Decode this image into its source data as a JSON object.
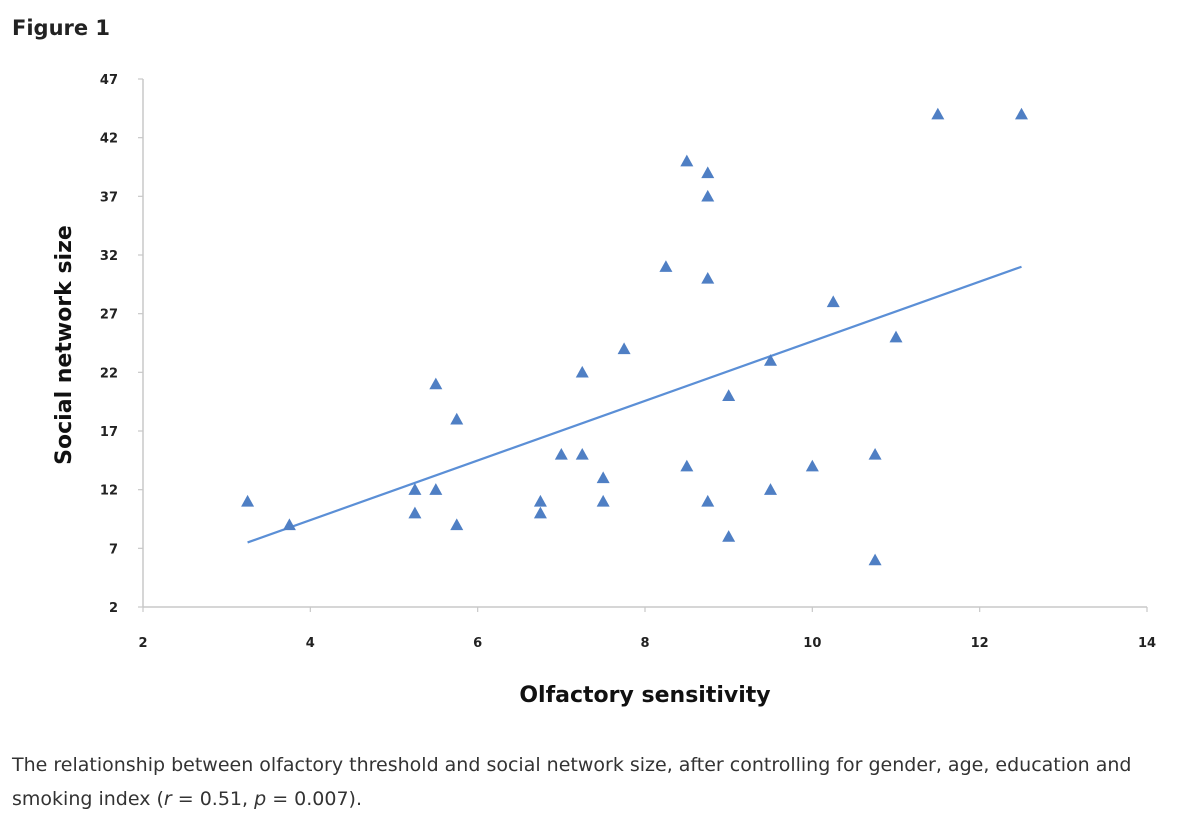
{
  "figure_title": "Figure 1",
  "caption": {
    "text": "The relationship between olfactory threshold and social network size, after controlling for gender, age, education and smoking index (",
    "r_symbol": "r",
    "r_text": " = 0.51, ",
    "p_symbol": "p",
    "p_text": " = 0.007)."
  },
  "colors": {
    "marker": "#4f7fc4",
    "trendline": "#5b8fd6",
    "axis": "#c8c8c8"
  },
  "chart_data": {
    "type": "scatter",
    "xlabel": "Olfactory sensitivity",
    "ylabel": "Social network size",
    "xlim": [
      2,
      14
    ],
    "ylim": [
      2,
      47
    ],
    "xticks": [
      2,
      4,
      6,
      8,
      10,
      12,
      14
    ],
    "yticks": [
      2,
      7,
      12,
      17,
      22,
      27,
      32,
      37,
      42,
      47
    ],
    "grid": false,
    "marker": "triangle",
    "points": [
      {
        "x": 3.25,
        "y": 11
      },
      {
        "x": 3.75,
        "y": 9
      },
      {
        "x": 5.25,
        "y": 12
      },
      {
        "x": 5.25,
        "y": 10
      },
      {
        "x": 5.5,
        "y": 21
      },
      {
        "x": 5.5,
        "y": 12
      },
      {
        "x": 5.75,
        "y": 18
      },
      {
        "x": 5.75,
        "y": 9
      },
      {
        "x": 6.75,
        "y": 11
      },
      {
        "x": 6.75,
        "y": 10
      },
      {
        "x": 7.0,
        "y": 15
      },
      {
        "x": 7.25,
        "y": 22
      },
      {
        "x": 7.25,
        "y": 15
      },
      {
        "x": 7.5,
        "y": 13
      },
      {
        "x": 7.5,
        "y": 11
      },
      {
        "x": 7.75,
        "y": 24
      },
      {
        "x": 8.25,
        "y": 31
      },
      {
        "x": 8.5,
        "y": 40
      },
      {
        "x": 8.5,
        "y": 14
      },
      {
        "x": 8.75,
        "y": 39
      },
      {
        "x": 8.75,
        "y": 37
      },
      {
        "x": 8.75,
        "y": 30
      },
      {
        "x": 8.75,
        "y": 11
      },
      {
        "x": 9.0,
        "y": 20
      },
      {
        "x": 9.0,
        "y": 8
      },
      {
        "x": 9.5,
        "y": 23
      },
      {
        "x": 9.5,
        "y": 12
      },
      {
        "x": 10.0,
        "y": 14
      },
      {
        "x": 10.25,
        "y": 28
      },
      {
        "x": 10.75,
        "y": 15
      },
      {
        "x": 10.75,
        "y": 6
      },
      {
        "x": 11.0,
        "y": 25
      },
      {
        "x": 11.5,
        "y": 44
      },
      {
        "x": 12.5,
        "y": 44
      }
    ],
    "trendline": {
      "x1": 3.25,
      "y1": 7.5,
      "x2": 12.5,
      "y2": 31
    }
  }
}
